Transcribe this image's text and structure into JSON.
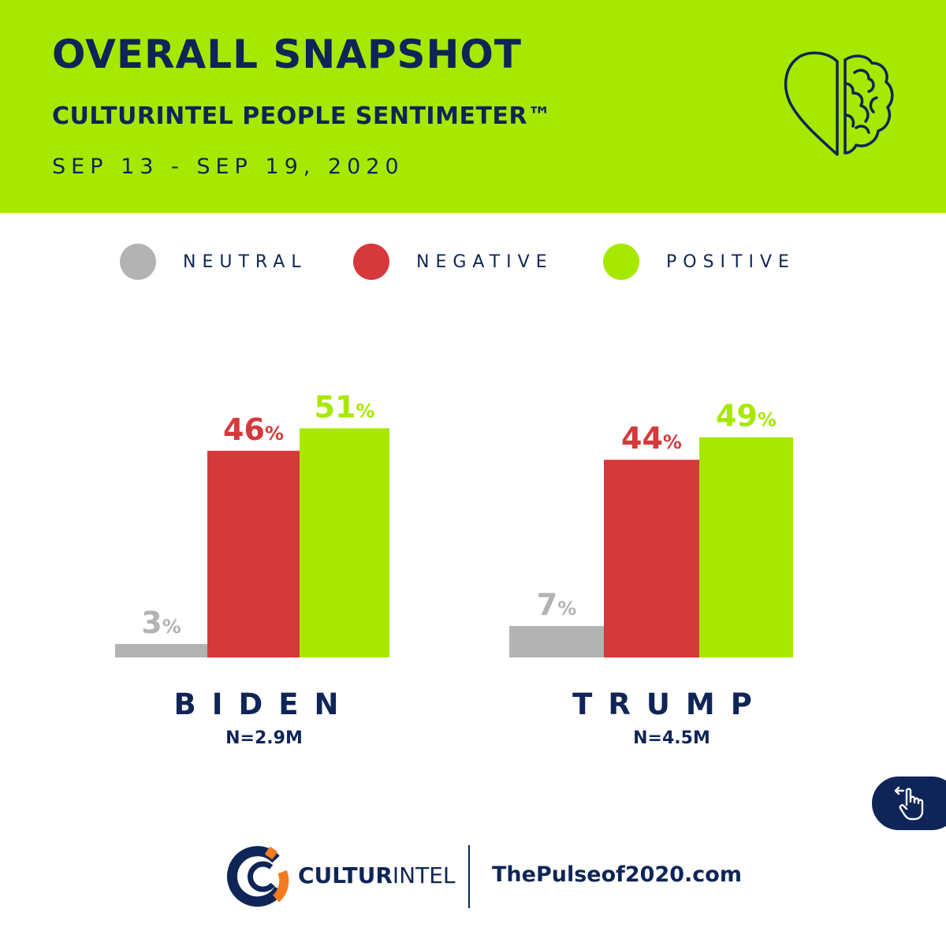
{
  "header": {
    "title": "OVERALL SNAPSHOT",
    "subtitle": "CULTURINTEL PEOPLE SENTIMETER™",
    "date_range": "SEP 13 - SEP 19, 2020",
    "icon": "heart-brain-icon"
  },
  "colors": {
    "header_bg": "#a7e800",
    "navy": "#0f2557",
    "neutral": "#b3b3b3",
    "negative": "#d6393c",
    "positive": "#a7e800",
    "orange": "#f47b20"
  },
  "legend": [
    {
      "label": "NEUTRAL",
      "color": "#b3b3b3"
    },
    {
      "label": "NEGATIVE",
      "color": "#d6393c"
    },
    {
      "label": "POSITIVE",
      "color": "#a7e800"
    }
  ],
  "chart_data": {
    "type": "bar",
    "title": "OVERALL SNAPSHOT",
    "unit": "%",
    "series_names": [
      "NEUTRAL",
      "NEGATIVE",
      "POSITIVE"
    ],
    "groups": [
      {
        "name": "BIDEN",
        "n_label": "N=2.9M",
        "values": [
          3,
          46,
          51
        ]
      },
      {
        "name": "TRUMP",
        "n_label": "N=4.5M",
        "values": [
          7,
          44,
          49
        ]
      }
    ],
    "ylim": [
      0,
      60
    ],
    "grid": false,
    "legend_position": "top"
  },
  "footer": {
    "brand_bold": "CULTUR",
    "brand_light": "INTEL",
    "url": "ThePulseof2020.com",
    "swipe_icon": "swipe-hand-icon"
  }
}
